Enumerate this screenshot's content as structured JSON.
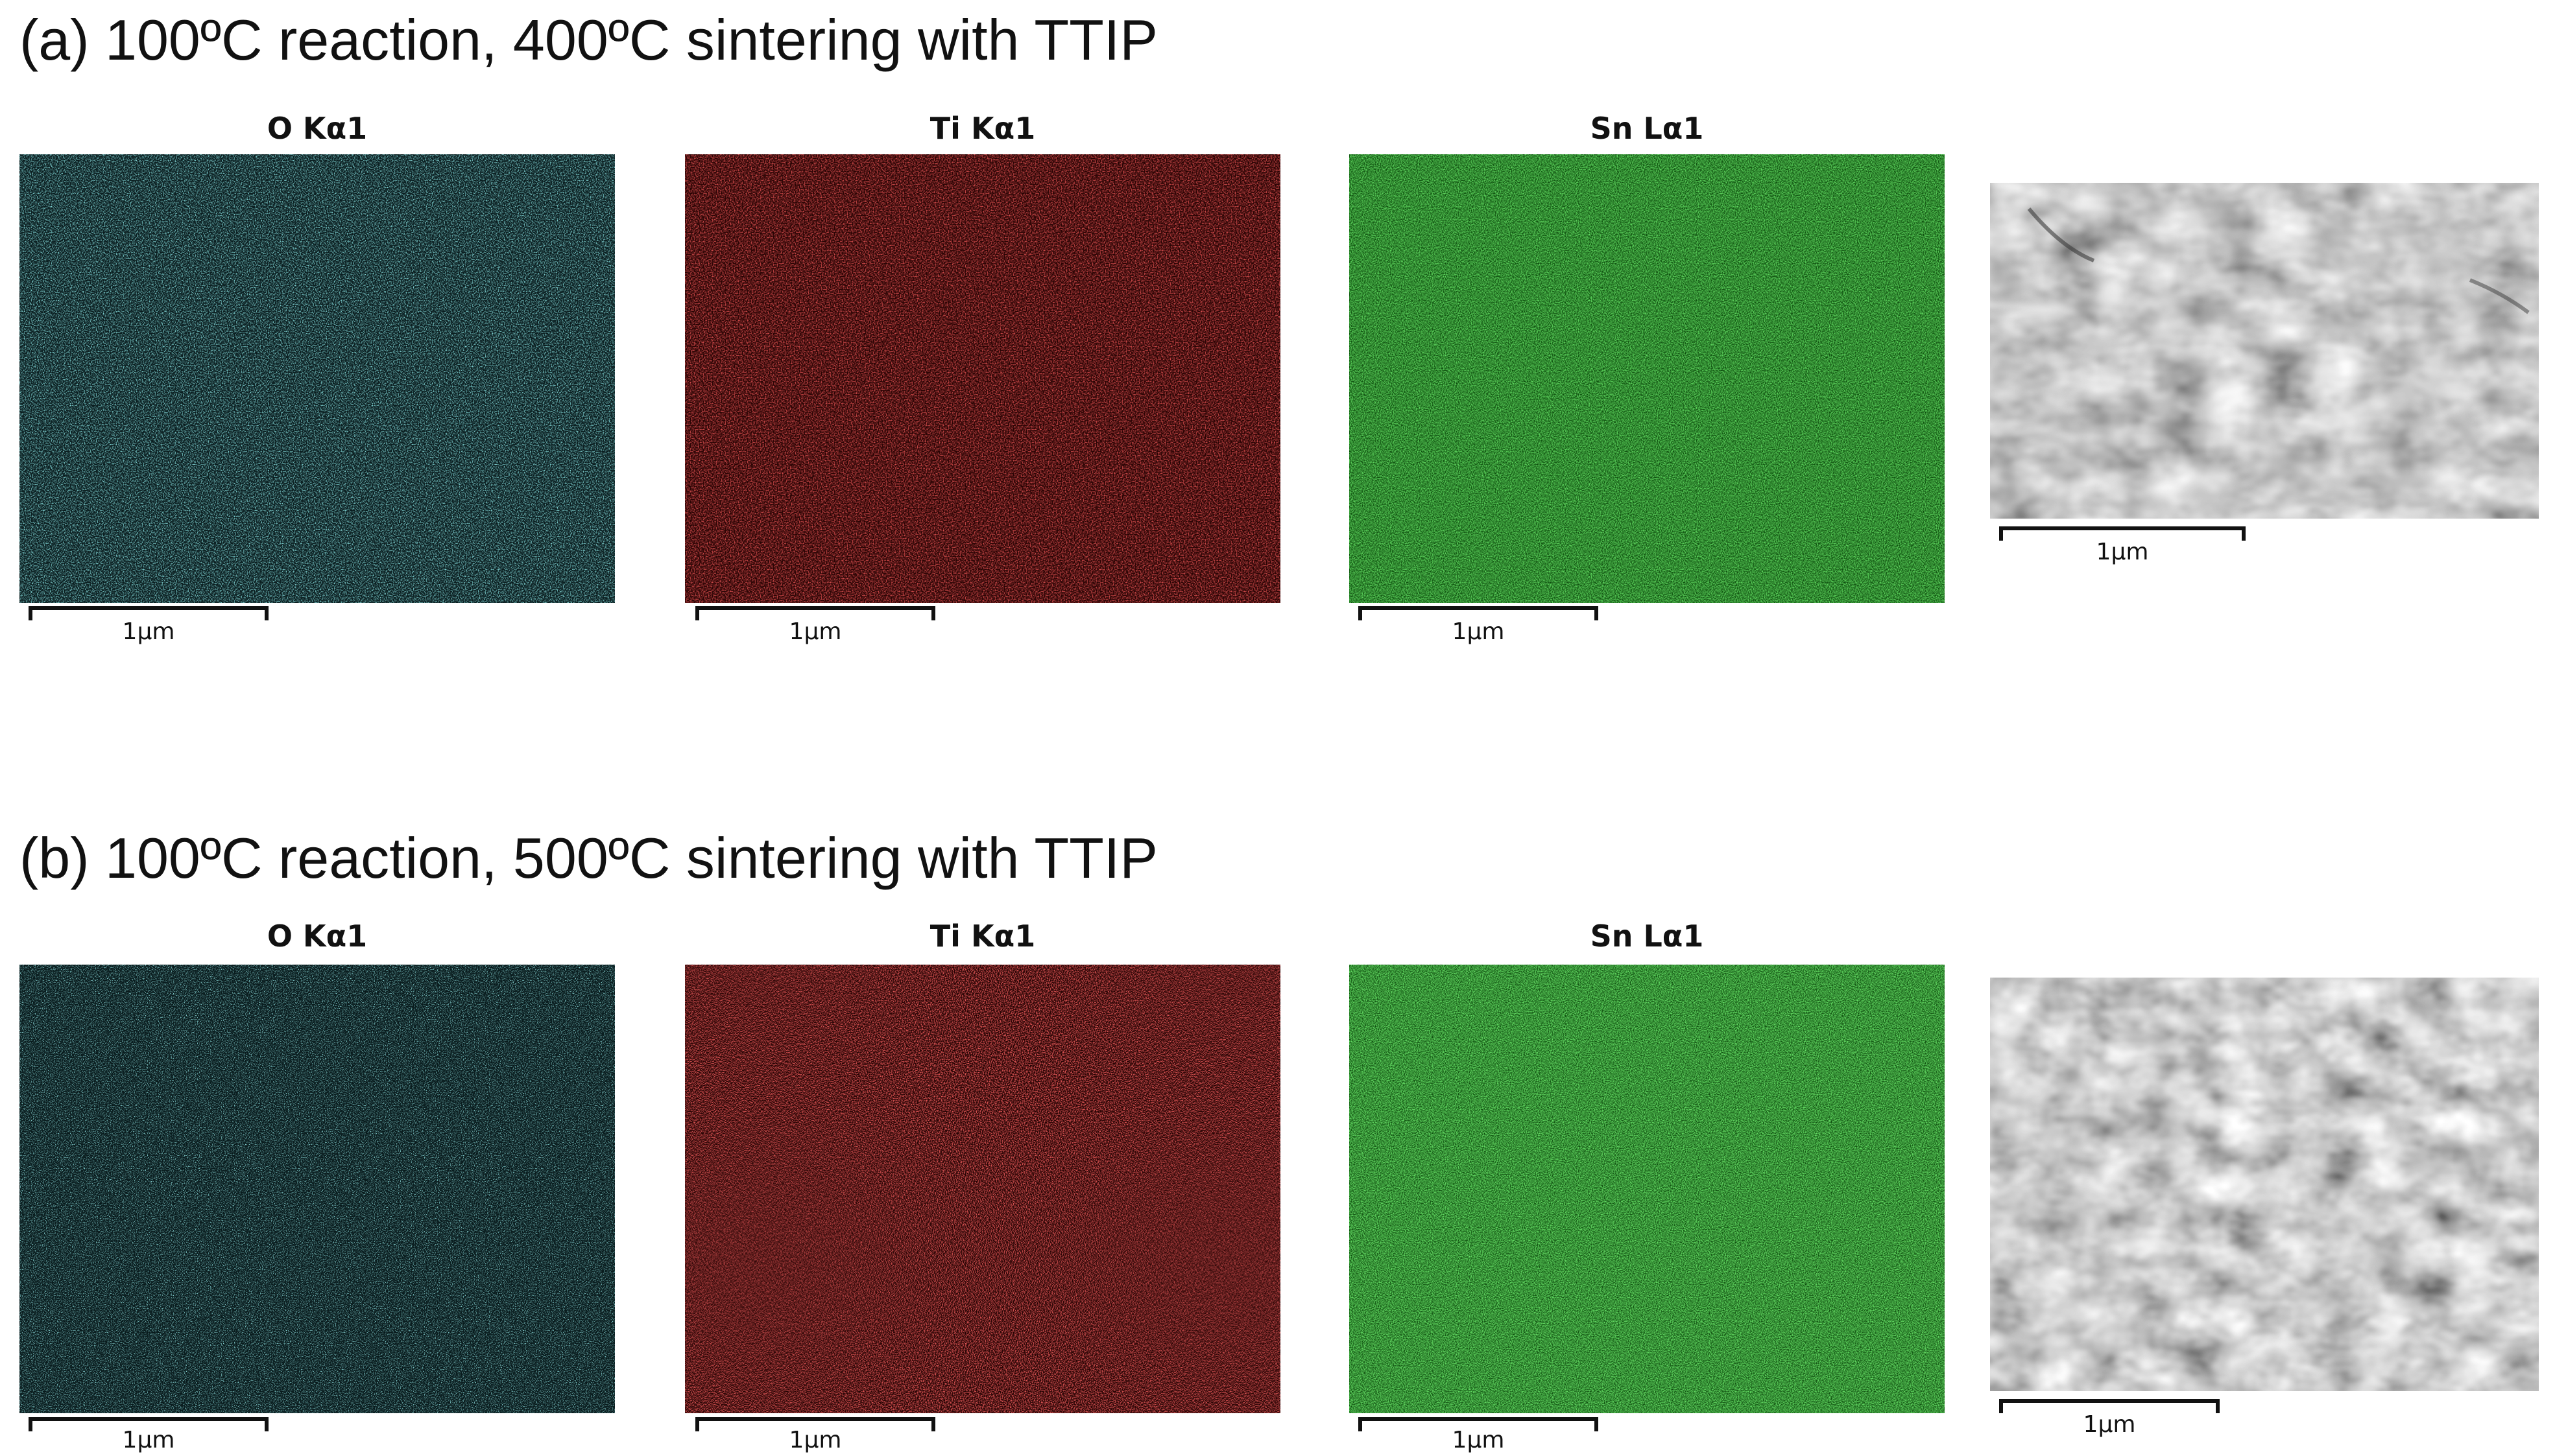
{
  "rows": [
    {
      "heading": "(a) 100ºC reaction, 400ºC sintering  with TTIP",
      "maps": [
        {
          "label": "O Kα1",
          "scale": "1μm",
          "color": "#3fbfbf",
          "bg": "#0a1d1f"
        },
        {
          "label": "Ti Kα1",
          "scale": "1μm",
          "color": "#b01818",
          "bg": "#2a0404"
        },
        {
          "label": "Sn Lα1",
          "scale": "1μm",
          "color": "#1fae1f",
          "bg": "#0d4d0d"
        }
      ],
      "sem": {
        "scale": "1μm"
      }
    },
    {
      "heading": "(b) 100ºC reaction, 500ºC sintering  with TTIP",
      "maps": [
        {
          "label": "O Kα1",
          "scale": "1μm",
          "color": "#49c7c7",
          "bg": "#081a1c"
        },
        {
          "label": "Ti Kα1",
          "scale": "1μm",
          "color": "#c01c1c",
          "bg": "#260303"
        },
        {
          "label": "Sn Lα1",
          "scale": "1μm",
          "color": "#22b422",
          "bg": "#0c4a0c"
        }
      ],
      "sem": {
        "scale": "1μm"
      }
    }
  ]
}
